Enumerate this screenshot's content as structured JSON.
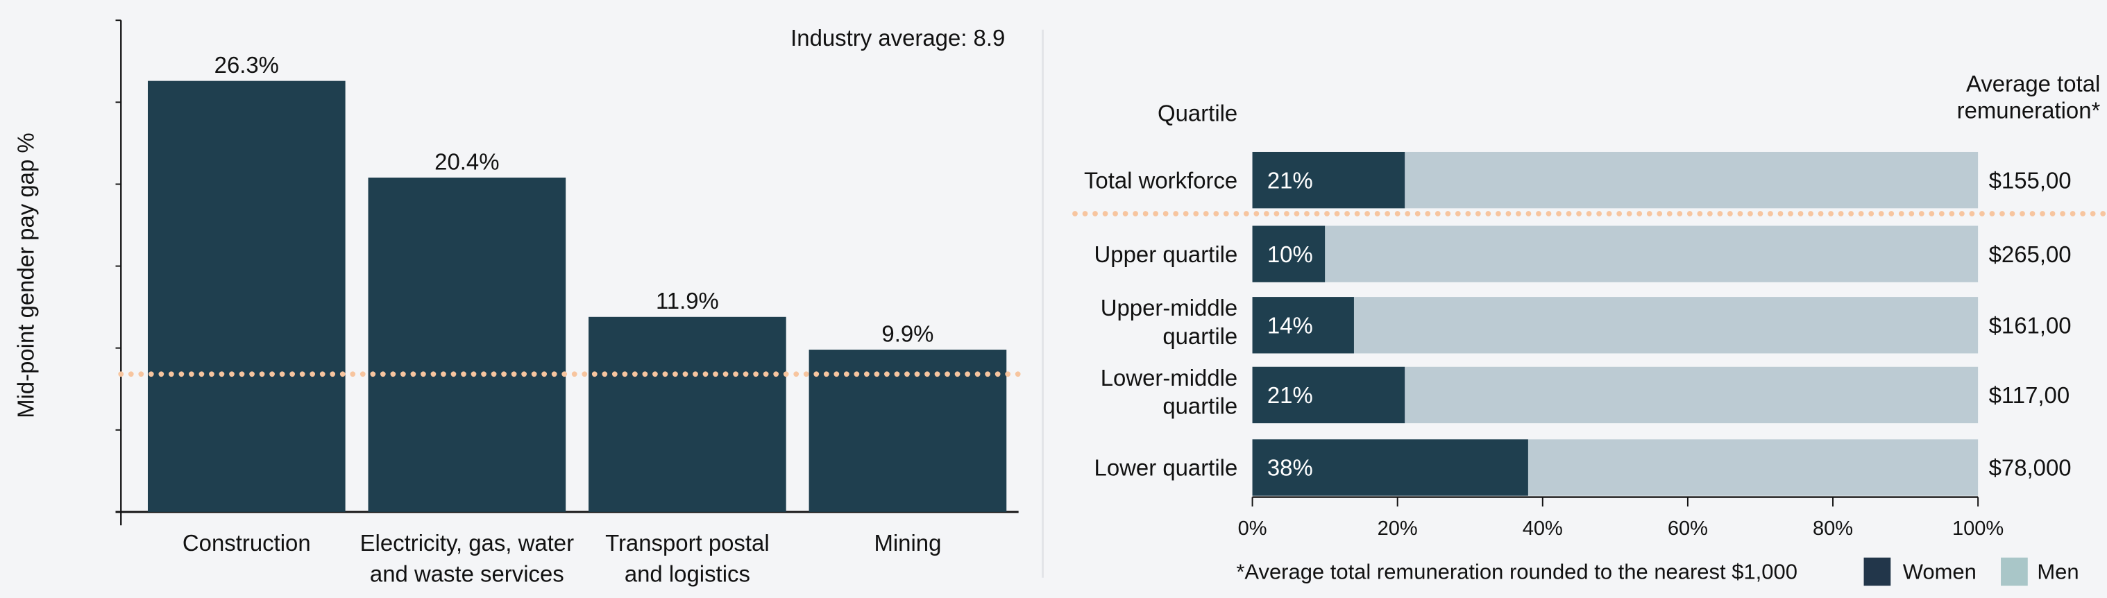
{
  "chart_data": [
    {
      "type": "bar",
      "ylabel": "Mid-point gender pay gap %",
      "categories": [
        [
          "Construction"
        ],
        [
          "Electricity, gas, water",
          "and waste services"
        ],
        [
          "Transport postal",
          "and logistics"
        ],
        [
          "Mining"
        ]
      ],
      "values": [
        26.3,
        20.4,
        11.9,
        9.9
      ],
      "data_labels": [
        "26.3%",
        "20.4%",
        "11.9%",
        "9.9%"
      ],
      "ylim": [
        0,
        30
      ],
      "ytick_step": 5,
      "reference_line": {
        "label": "Industry average: 8.9",
        "value": 8.9,
        "color": "#f7c59f",
        "style": "dotted"
      },
      "bar_color": "#1f3f4f",
      "grid": false
    },
    {
      "type": "bar",
      "orientation": "horizontal",
      "stacked": true,
      "row_header": "Quartile",
      "value_header": [
        "Average total",
        "remuneration*"
      ],
      "categories": [
        [
          "Total workforce"
        ],
        [
          "Upper quartile"
        ],
        [
          "Upper-middle",
          "quartile"
        ],
        [
          "Lower-middle",
          "quartile"
        ],
        [
          "Lower quartile"
        ]
      ],
      "series": [
        {
          "name": "Women",
          "values": [
            21,
            10,
            14,
            21,
            38
          ],
          "labels": [
            "21%",
            "10%",
            "14%",
            "21%",
            "38%"
          ],
          "color": "#1f3f4f"
        },
        {
          "name": "Men",
          "values": [
            79,
            90,
            86,
            79,
            62
          ],
          "color": "#bccbd3"
        }
      ],
      "remuneration": [
        "$155,00",
        "$265,00",
        "$161,00",
        "$117,00",
        "$78,000"
      ],
      "xlim": [
        0,
        100
      ],
      "xticks": [
        "0%",
        "20%",
        "40%",
        "60%",
        "80%",
        "100%"
      ],
      "separator_line": {
        "color": "#f7c59f",
        "style": "dotted"
      },
      "footnote": "*Average total remuneration rounded to the nearest $1,000",
      "legend": {
        "placement": "bottom-right",
        "items": [
          {
            "label": "Women",
            "color": "#22364a"
          },
          {
            "label": "Men",
            "color": "#a9c6c8"
          }
        ]
      }
    }
  ]
}
